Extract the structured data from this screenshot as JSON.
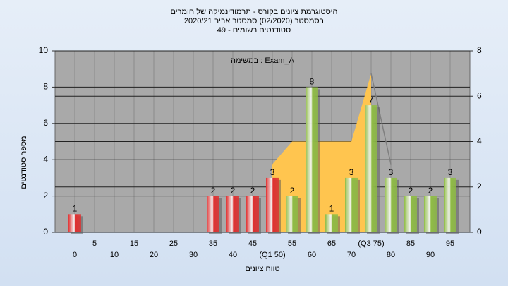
{
  "chart_data": {
    "type": "bar",
    "title_lines": [
      "היסטוגרמת ציונים בקורס - תרמודינמיקה של חומרים",
      "בסמסטר  (02/2020)  סמסטר אביב 2020/21",
      "סטודנטים רשומים - 49"
    ],
    "annotation": "במשימה : Exam_A",
    "y_label": "מספר סטודנטים",
    "x_label": "טווח ציונים",
    "categories": [
      "0",
      "5",
      "10",
      "15",
      "20",
      "25",
      "30",
      "35",
      "40",
      "45",
      "(Q1 50)",
      "55",
      "60",
      "65",
      "70",
      "(Q3 75)",
      "80",
      "85",
      "90",
      "95"
    ],
    "series": [
      {
        "type": "bar",
        "values": [
          1,
          0,
          0,
          0,
          0,
          0,
          0,
          2,
          2,
          2,
          3,
          2,
          8,
          1,
          3,
          7,
          3,
          2,
          2,
          3
        ],
        "colors": [
          "#e03030",
          "#e03030",
          "#e03030",
          "#e03030",
          "#e03030",
          "#e03030",
          "#e03030",
          "#e03030",
          "#e03030",
          "#e03030",
          "#e03030",
          "#8fbc45",
          "#8fbc45",
          "#8fbc45",
          "#8fbc45",
          "#8fbc45",
          "#8fbc45",
          "#8fbc45",
          "#8fbc45",
          "#8fbc45"
        ]
      },
      {
        "type": "area",
        "axis": "y2",
        "color": "#ffc54f",
        "values": [
          null,
          null,
          null,
          null,
          null,
          null,
          null,
          null,
          null,
          null,
          3,
          4,
          4,
          4,
          4,
          7,
          null,
          null,
          null,
          null
        ]
      },
      {
        "type": "line",
        "axis": "y2",
        "color": "#7f7f7f",
        "values": [
          null,
          null,
          null,
          null,
          null,
          null,
          null,
          null,
          null,
          null,
          null,
          null,
          null,
          null,
          null,
          7,
          3,
          null,
          null,
          null
        ]
      }
    ],
    "ylim": [
      0,
      10
    ],
    "yticks": [
      0,
      2,
      4,
      6,
      8,
      10
    ],
    "y2lim": [
      0,
      8
    ],
    "y2ticks": [
      0,
      2,
      4,
      6,
      8
    ],
    "grid": true
  }
}
